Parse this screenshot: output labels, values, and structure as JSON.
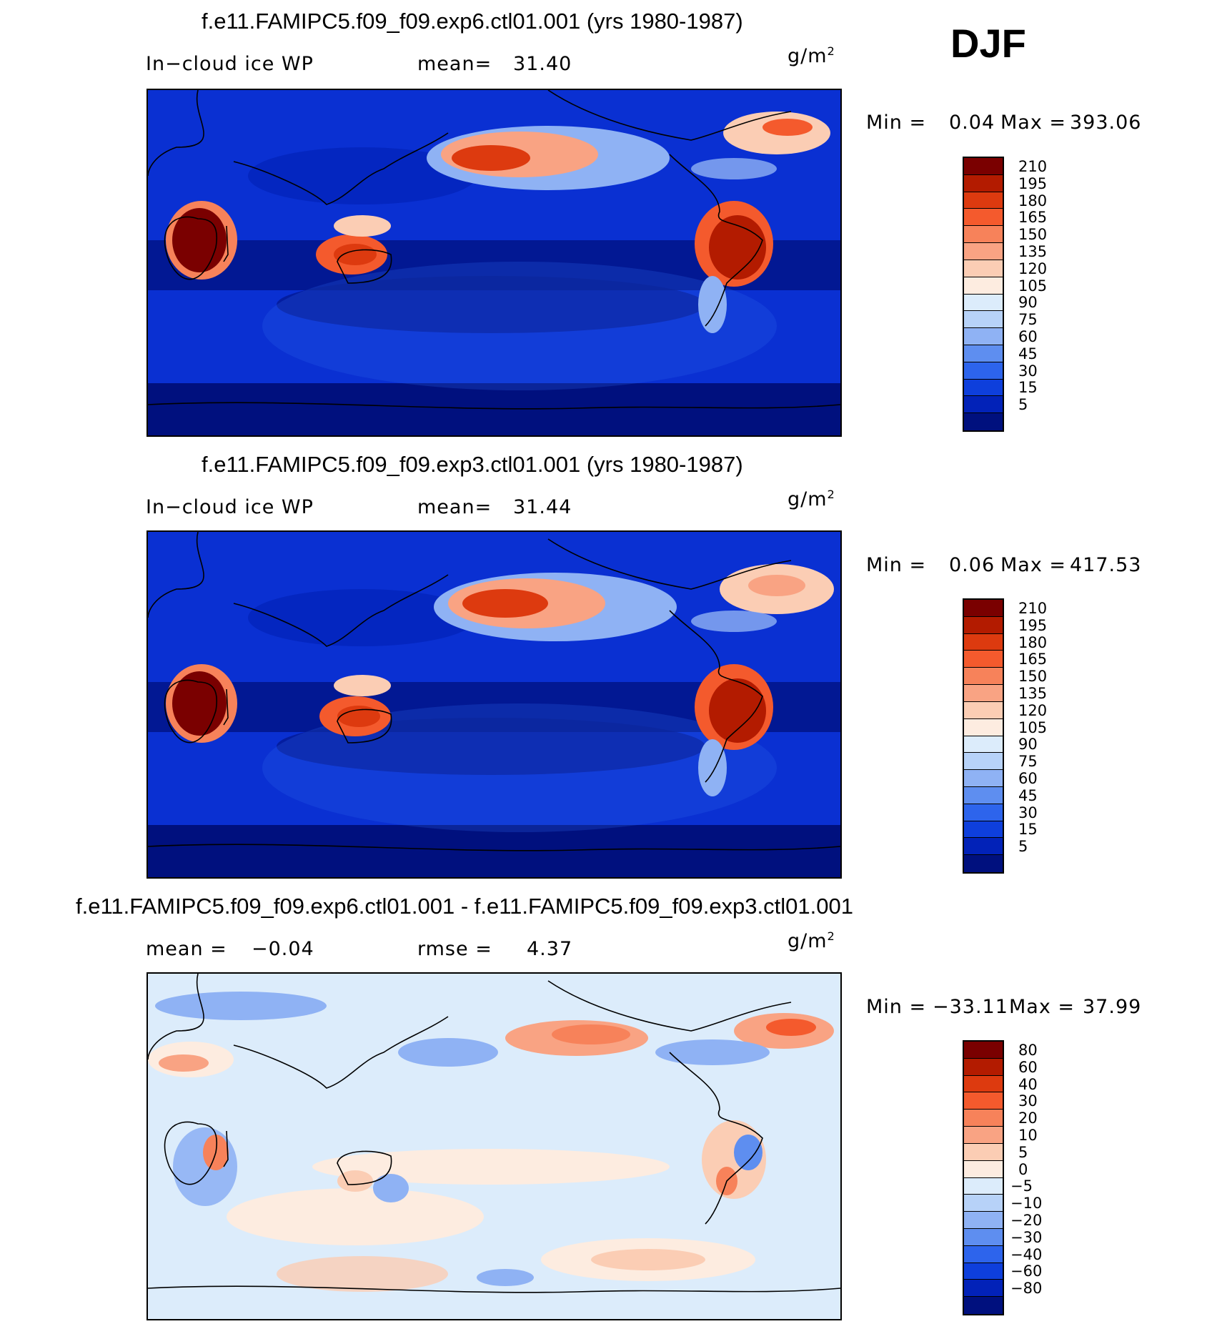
{
  "season": "DJF",
  "panels": [
    {
      "title": "f.e11.FAMIPC5.f09_f09.exp6.ctl01.001 (yrs 1980-1987)",
      "left_label": "In−cloud ice WP",
      "mid_label": "mean=",
      "mid_value": "31.40",
      "units": "g/m",
      "units_exp": "2",
      "min_label": "Min =",
      "min_value": "0.04",
      "max_label": "Max =",
      "max_value": "393.06",
      "levels": [
        "210",
        "195",
        "180",
        "165",
        "150",
        "135",
        "120",
        "105",
        "90",
        "75",
        "60",
        "45",
        "30",
        "15",
        "5"
      ],
      "colors": [
        "#7a0000",
        "#b31b00",
        "#dd3a0f",
        "#f45a2d",
        "#f7825a",
        "#f9a383",
        "#fbcdb4",
        "#fdece0",
        "#dcecfb",
        "#b7d2f8",
        "#8fb2f4",
        "#5e8ef0",
        "#2d64ec",
        "#0e3fdc",
        "#0222b8",
        "#00107e"
      ]
    },
    {
      "title": "f.e11.FAMIPC5.f09_f09.exp3.ctl01.001 (yrs 1980-1987)",
      "left_label": "In−cloud ice WP",
      "mid_label": "mean=",
      "mid_value": "31.44",
      "units": "g/m",
      "units_exp": "2",
      "min_label": "Min =",
      "min_value": "0.06",
      "max_label": "Max =",
      "max_value": "417.53",
      "levels": [
        "210",
        "195",
        "180",
        "165",
        "150",
        "135",
        "120",
        "105",
        "90",
        "75",
        "60",
        "45",
        "30",
        "15",
        "5"
      ],
      "colors": [
        "#7a0000",
        "#b31b00",
        "#dd3a0f",
        "#f45a2d",
        "#f7825a",
        "#f9a383",
        "#fbcdb4",
        "#fdece0",
        "#dcecfb",
        "#b7d2f8",
        "#8fb2f4",
        "#5e8ef0",
        "#2d64ec",
        "#0e3fdc",
        "#0222b8",
        "#00107e"
      ]
    },
    {
      "title": "f.e11.FAMIPC5.f09_f09.exp6.ctl01.001 - f.e11.FAMIPC5.f09_f09.exp3.ctl01.001",
      "left_label": "mean =",
      "left_value": "−0.04",
      "mid_label": "rmse =",
      "mid_value": "4.37",
      "units": "g/m",
      "units_exp": "2",
      "min_label": "Min =",
      "min_value": "−33.11",
      "max_label": "Max =",
      "max_value": "37.99",
      "levels": [
        "80",
        "60",
        "40",
        "30",
        "20",
        "10",
        "5",
        "0",
        "−5",
        "−10",
        "−20",
        "−30",
        "−40",
        "−60",
        "−80"
      ],
      "colors": [
        "#7a0000",
        "#b31b00",
        "#dd3a0f",
        "#f45a2d",
        "#f7825a",
        "#f9a383",
        "#fbcdb4",
        "#fdece0",
        "#dcecfb",
        "#b7d2f8",
        "#8fb2f4",
        "#5e8ef0",
        "#2d64ec",
        "#0e3fdc",
        "#0222b8",
        "#00107e"
      ]
    }
  ]
}
